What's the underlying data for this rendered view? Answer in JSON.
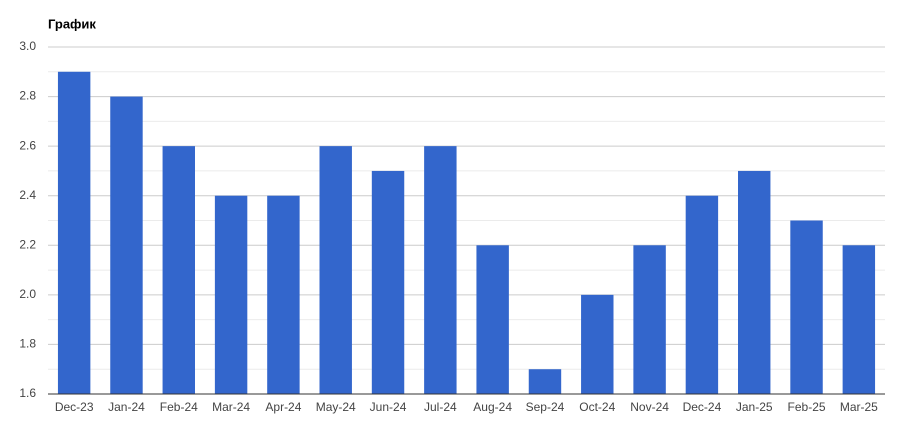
{
  "chart_data": {
    "type": "bar",
    "title": "График",
    "categories": [
      "Dec-23",
      "Jan-24",
      "Feb-24",
      "Mar-24",
      "Apr-24",
      "May-24",
      "Jun-24",
      "Jul-24",
      "Aug-24",
      "Sep-24",
      "Oct-24",
      "Nov-24",
      "Dec-24",
      "Jan-25",
      "Feb-25",
      "Mar-25"
    ],
    "values": [
      2.9,
      2.8,
      2.6,
      2.4,
      2.4,
      2.6,
      2.5,
      2.6,
      2.2,
      1.7,
      2.0,
      2.2,
      2.4,
      2.5,
      2.3,
      2.2
    ],
    "color": "#3366cc",
    "ylim": [
      1.6,
      3.0
    ],
    "yticks": [
      1.6,
      1.8,
      {
        "value": 2,
        "label": "2.0"
      },
      2.2,
      2.4,
      2.6,
      2.8,
      {
        "value": 3,
        "label": "3.0"
      }
    ],
    "grid": true,
    "minor_grid": true
  }
}
